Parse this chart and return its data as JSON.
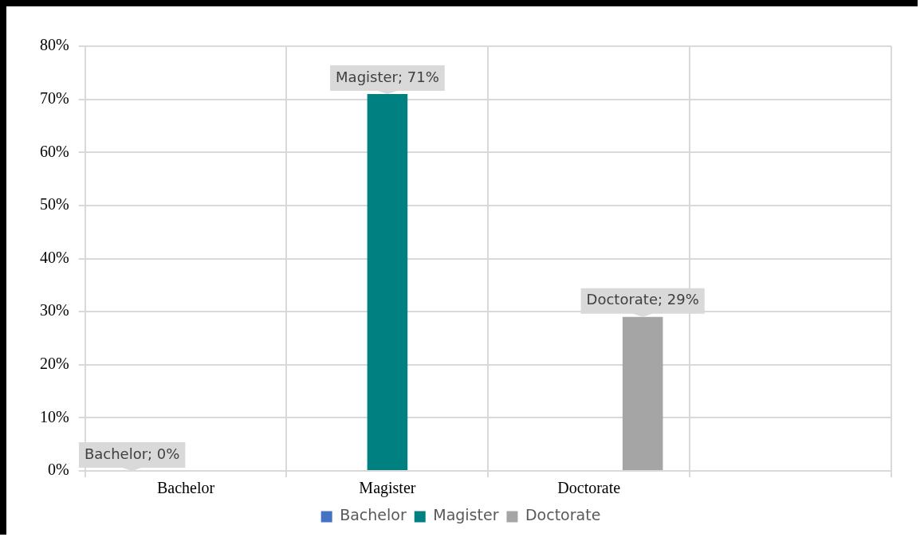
{
  "chart_data": {
    "type": "bar",
    "categories": [
      "Bachelor",
      "Magister",
      "Doctorate",
      null
    ],
    "series": [
      {
        "name": "Bachelor",
        "color": "#4472c4",
        "values": [
          0,
          null,
          null,
          null
        ],
        "value_labels": [
          "Bachelor; 0%",
          null,
          null,
          null
        ]
      },
      {
        "name": "Magister",
        "color": "#008080",
        "values": [
          null,
          71,
          null,
          null
        ],
        "value_labels": [
          null,
          "Magister; 71%",
          null,
          null
        ]
      },
      {
        "name": "Doctorate",
        "color": "#a5a5a5",
        "values": [
          null,
          null,
          29,
          null
        ],
        "value_labels": [
          null,
          null,
          "Doctorate; 29%",
          null
        ]
      }
    ],
    "ylim": [
      0,
      80
    ],
    "yticks": [
      {
        "value": 0,
        "label": "0%"
      },
      {
        "value": 10,
        "label": "10%"
      },
      {
        "value": 20,
        "label": "20%"
      },
      {
        "value": 30,
        "label": "30%"
      },
      {
        "value": 40,
        "label": "40%"
      },
      {
        "value": 50,
        "label": "50%"
      },
      {
        "value": 60,
        "label": "60%"
      },
      {
        "value": 70,
        "label": "70%"
      },
      {
        "value": 80,
        "label": "80%"
      }
    ],
    "grid": true,
    "legend": "bottom"
  }
}
